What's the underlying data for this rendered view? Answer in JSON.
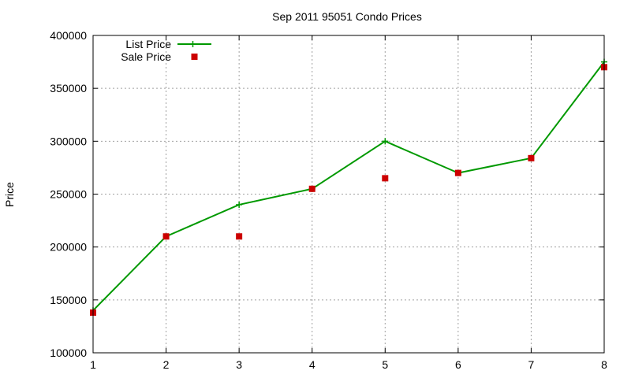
{
  "chart_data": {
    "type": "line",
    "title": "Sep 2011 95051 Condo Prices",
    "xlabel": "",
    "ylabel": "Price",
    "x": [
      1,
      2,
      3,
      4,
      5,
      6,
      7,
      8
    ],
    "xlim": [
      1,
      8
    ],
    "ylim": [
      100000,
      400000
    ],
    "xticks": [
      "1",
      "2",
      "3",
      "4",
      "5",
      "6",
      "7",
      "8"
    ],
    "yticks": [
      "100000",
      "150000",
      "200000",
      "250000",
      "300000",
      "350000",
      "400000"
    ],
    "grid": true,
    "legend_position": "top-left",
    "series": [
      {
        "name": "List Price",
        "style": "line+plus",
        "color": "#009900",
        "values": [
          140000,
          210000,
          240000,
          255000,
          300000,
          270000,
          284000,
          375000
        ]
      },
      {
        "name": "Sale Price",
        "style": "square",
        "color": "#cc0000",
        "values": [
          138000,
          210000,
          210000,
          255000,
          265000,
          270000,
          284000,
          370000
        ]
      }
    ]
  }
}
